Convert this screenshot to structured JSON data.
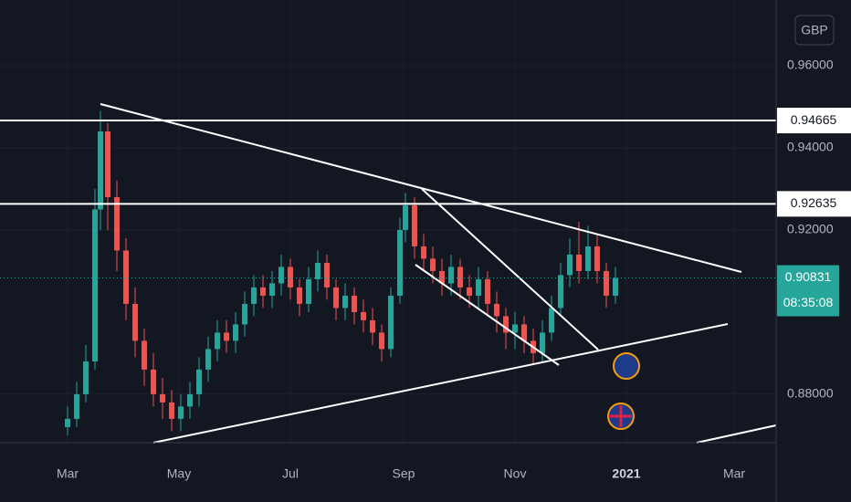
{
  "chart_data": {
    "type": "candlestick",
    "currency": "GBP",
    "x": [
      0,
      5,
      10,
      15,
      18,
      22,
      27,
      32,
      37,
      42,
      47,
      52,
      57,
      62,
      67,
      72,
      77,
      82,
      87,
      92,
      97,
      102,
      107,
      112,
      117,
      122,
      127,
      132,
      137,
      142,
      147,
      152,
      157,
      162,
      167,
      172,
      177,
      182,
      185,
      190,
      195,
      200,
      205,
      210,
      215,
      220,
      225,
      230,
      235,
      240,
      245,
      250,
      255,
      260,
      265,
      270,
      275,
      280,
      285,
      290,
      295,
      300
    ],
    "open": [
      0.872,
      0.874,
      0.88,
      0.888,
      0.925,
      0.944,
      0.928,
      0.915,
      0.902,
      0.893,
      0.886,
      0.88,
      0.878,
      0.874,
      0.877,
      0.88,
      0.886,
      0.891,
      0.895,
      0.893,
      0.897,
      0.902,
      0.906,
      0.904,
      0.907,
      0.911,
      0.906,
      0.902,
      0.908,
      0.912,
      0.906,
      0.901,
      0.904,
      0.9,
      0.898,
      0.895,
      0.891,
      0.904,
      0.92,
      0.926,
      0.916,
      0.913,
      0.91,
      0.907,
      0.911,
      0.906,
      0.904,
      0.908,
      0.902,
      0.899,
      0.895,
      0.897,
      0.893,
      0.89,
      0.895,
      0.901,
      0.909,
      0.914,
      0.91,
      0.916,
      0.91,
      0.904
    ],
    "high": [
      0.877,
      0.883,
      0.892,
      0.93,
      0.949,
      0.946,
      0.932,
      0.918,
      0.906,
      0.896,
      0.89,
      0.884,
      0.881,
      0.88,
      0.883,
      0.889,
      0.894,
      0.898,
      0.898,
      0.9,
      0.905,
      0.909,
      0.909,
      0.91,
      0.914,
      0.913,
      0.908,
      0.911,
      0.915,
      0.914,
      0.908,
      0.907,
      0.906,
      0.903,
      0.901,
      0.897,
      0.906,
      0.923,
      0.929,
      0.928,
      0.919,
      0.916,
      0.913,
      0.914,
      0.913,
      0.909,
      0.911,
      0.91,
      0.905,
      0.901,
      0.9,
      0.899,
      0.896,
      0.898,
      0.904,
      0.912,
      0.918,
      0.922,
      0.921,
      0.919,
      0.912,
      0.911
    ],
    "low": [
      0.87,
      0.872,
      0.878,
      0.886,
      0.92,
      0.92,
      0.91,
      0.898,
      0.889,
      0.882,
      0.877,
      0.874,
      0.871,
      0.871,
      0.874,
      0.877,
      0.883,
      0.888,
      0.89,
      0.89,
      0.894,
      0.899,
      0.901,
      0.901,
      0.904,
      0.903,
      0.899,
      0.9,
      0.905,
      0.903,
      0.898,
      0.898,
      0.897,
      0.895,
      0.892,
      0.888,
      0.889,
      0.902,
      0.917,
      0.913,
      0.91,
      0.907,
      0.904,
      0.904,
      0.903,
      0.901,
      0.901,
      0.899,
      0.895,
      0.891,
      0.891,
      0.89,
      0.887,
      0.888,
      0.893,
      0.899,
      0.906,
      0.907,
      0.908,
      0.907,
      0.901,
      0.902
    ],
    "close": [
      0.874,
      0.88,
      0.888,
      0.925,
      0.944,
      0.928,
      0.915,
      0.902,
      0.893,
      0.886,
      0.88,
      0.878,
      0.874,
      0.877,
      0.88,
      0.886,
      0.891,
      0.895,
      0.893,
      0.897,
      0.902,
      0.906,
      0.904,
      0.907,
      0.911,
      0.906,
      0.902,
      0.908,
      0.912,
      0.906,
      0.901,
      0.904,
      0.9,
      0.898,
      0.895,
      0.891,
      0.904,
      0.92,
      0.926,
      0.916,
      0.913,
      0.91,
      0.907,
      0.911,
      0.906,
      0.904,
      0.908,
      0.902,
      0.899,
      0.895,
      0.897,
      0.893,
      0.89,
      0.895,
      0.901,
      0.909,
      0.914,
      0.91,
      0.916,
      0.91,
      0.904,
      0.9083
    ],
    "up_color": "#26a69a",
    "down_color": "#ef5350",
    "xlim": [
      -37,
      388
    ],
    "xticks": [
      {
        "value": 0,
        "label": "Mar"
      },
      {
        "value": 61,
        "label": "May"
      },
      {
        "value": 122,
        "label": "Jul"
      },
      {
        "value": 184,
        "label": "Sep"
      },
      {
        "value": 245,
        "label": "Nov"
      },
      {
        "value": 306,
        "label": "2021"
      },
      {
        "value": 365,
        "label": "Mar"
      }
    ],
    "ylim": [
      0.8682,
      0.976
    ],
    "yticks": [
      {
        "value": 0.88,
        "label": "0.88000"
      },
      {
        "value": 0.92,
        "label": "0.92000"
      },
      {
        "value": 0.94,
        "label": "0.94000"
      },
      {
        "value": 0.96,
        "label": "0.96000"
      }
    ],
    "levels": [
      {
        "value": 0.94665,
        "label": "0.94665"
      },
      {
        "value": 0.92635,
        "label": "0.92635"
      }
    ],
    "last_price": {
      "value": 0.90831,
      "label": "0.90831"
    },
    "countdown": "08:35:08",
    "grid": true
  }
}
